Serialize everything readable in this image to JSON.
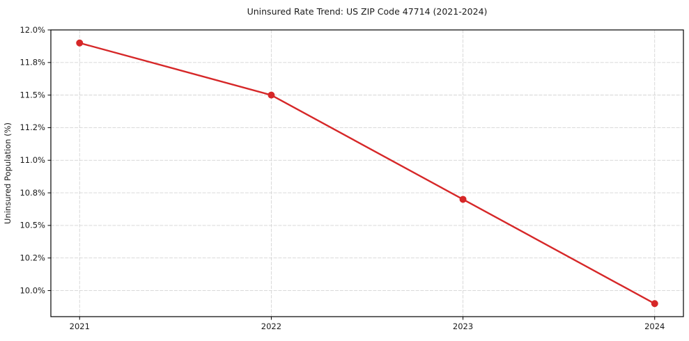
{
  "figure": {
    "background": "#ffffff"
  },
  "chart_data": {
    "type": "line",
    "title": "Uninsured Rate Trend: US ZIP Code 47714 (2021-2024)",
    "xlabel": "",
    "ylabel": "Uninsured Population (%)",
    "x": [
      2021,
      2022,
      2023,
      2024
    ],
    "x_tick_labels": [
      "2021",
      "2022",
      "2023",
      "2024"
    ],
    "series": [
      {
        "name": "Uninsured Population (%)",
        "values": [
          11.9,
          11.5,
          10.7,
          9.9
        ]
      }
    ],
    "xlim": [
      2020.85,
      2024.15
    ],
    "ylim": [
      9.8,
      12.0
    ],
    "yticks": [
      10.0,
      10.25,
      10.5,
      10.75,
      11.0,
      11.25,
      11.5,
      11.75,
      12.0
    ],
    "y_tick_labels": [
      "10.0%",
      "10.2%",
      "10.5%",
      "10.8%",
      "11.0%",
      "11.2%",
      "11.5%",
      "11.8%",
      "12.0%"
    ],
    "grid": true,
    "grid_linestyle": "dashed",
    "legend": "none",
    "colors": {
      "line": "#d62728",
      "marker": "#d62728",
      "grid": "#d4d4d4",
      "spine": "#000000",
      "text": "#1a1a1a"
    }
  }
}
